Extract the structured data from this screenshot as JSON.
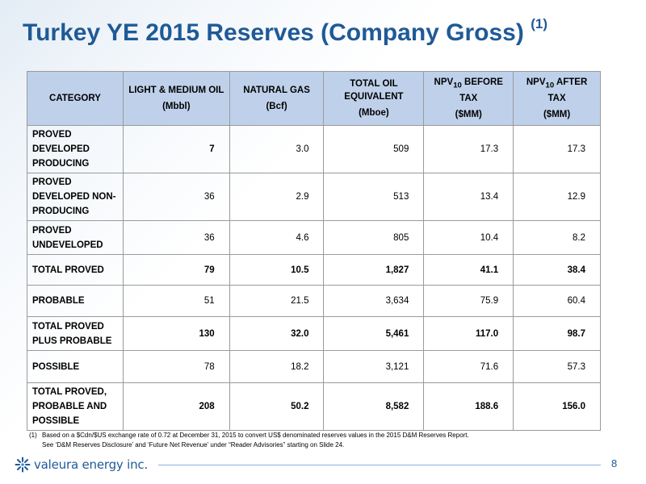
{
  "slide": {
    "title": "Turkey YE 2015 Reserves (Company Gross)",
    "title_superscript": "(1)",
    "page_number": "8"
  },
  "table": {
    "headers": [
      {
        "line1": "CATEGORY",
        "unit": ""
      },
      {
        "line1": "LIGHT & MEDIUM OIL",
        "unit": "(Mbbl)"
      },
      {
        "line1": "NATURAL GAS",
        "unit": "(Bcf)"
      },
      {
        "line1": "TOTAL OIL EQUIVALENT",
        "unit": "(Mboe)"
      },
      {
        "line1_pre": "NPV",
        "line1_sub": "10",
        "line1_post": " BEFORE TAX",
        "unit": "($MM)"
      },
      {
        "line1_pre": "NPV",
        "line1_sub": "10",
        "line1_post": " AFTER TAX",
        "unit": "($MM)"
      }
    ],
    "rows": [
      {
        "category": "PROVED DEVELOPED PRODUCING",
        "oil": "7",
        "gas": "3.0",
        "boe": "509",
        "npv_before": "17.3",
        "npv_after": "17.3"
      },
      {
        "category": "PROVED DEVELOPED NON-PRODUCING",
        "oil": "36",
        "gas": "2.9",
        "boe": "513",
        "npv_before": "13.4",
        "npv_after": "12.9"
      },
      {
        "category": "PROVED UNDEVELOPED",
        "oil": "36",
        "gas": "4.6",
        "boe": "805",
        "npv_before": "10.4",
        "npv_after": "8.2"
      },
      {
        "category": "TOTAL PROVED",
        "oil": "79",
        "gas": "10.5",
        "boe": "1,827",
        "npv_before": "41.1",
        "npv_after": "38.4"
      },
      {
        "category": "PROBABLE",
        "oil": "51",
        "gas": "21.5",
        "boe": "3,634",
        "npv_before": "75.9",
        "npv_after": "60.4"
      },
      {
        "category": "TOTAL PROVED PLUS PROBABLE",
        "oil": "130",
        "gas": "32.0",
        "boe": "5,461",
        "npv_before": "117.0",
        "npv_after": "98.7"
      },
      {
        "category": "POSSIBLE",
        "oil": "78",
        "gas": "18.2",
        "boe": "3,121",
        "npv_before": "71.6",
        "npv_after": "57.3"
      },
      {
        "category": "TOTAL PROVED, PROBABLE AND POSSIBLE",
        "oil": "208",
        "gas": "50.2",
        "boe": "8,582",
        "npv_before": "188.6",
        "npv_after": "156.0"
      }
    ]
  },
  "footnote": {
    "marker": "(1)",
    "line1": "Based on a $Cdn/$US exchange rate of 0.72 at December 31, 2015 to convert US$ denominated reserves values in the 2015 D&M Reserves Report.",
    "line2": "See ‘D&M Reserves Disclosure’ and ‘Future Net Revenue’ under “Reader Advisories” starting on Slide 24."
  },
  "footer": {
    "logo_text": "valeura energy inc.",
    "logo_icon": "starburst-logo-icon",
    "brand_color": "#1f5a96",
    "header_fill": "#bfd1ea"
  }
}
